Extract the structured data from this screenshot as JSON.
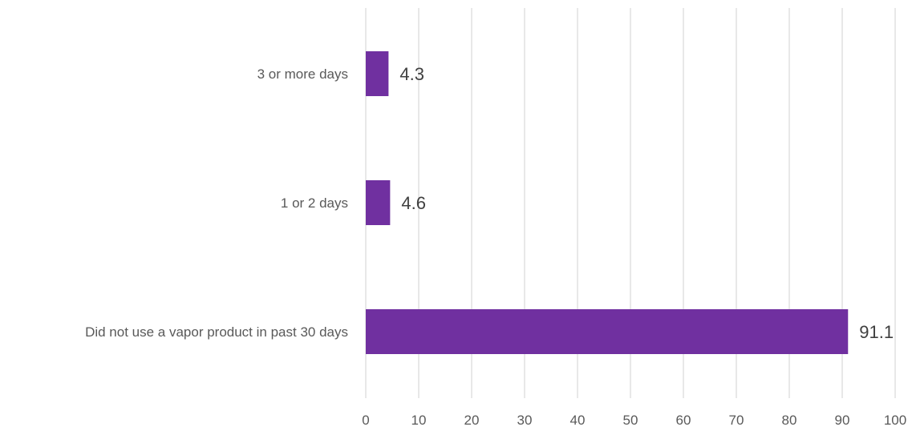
{
  "chart_data": {
    "type": "bar",
    "orientation": "horizontal",
    "categories": [
      "3 or more days",
      "1 or 2 days",
      "Did not use a vapor product in past 30 days"
    ],
    "values": [
      4.3,
      4.6,
      91.1
    ],
    "data_labels": [
      "4.3",
      "4.6",
      "91.1"
    ],
    "xlim": [
      0,
      100
    ],
    "xticks": [
      0,
      10,
      20,
      30,
      40,
      50,
      60,
      70,
      80,
      90,
      100
    ],
    "tick_labels": [
      "0",
      "10",
      "20",
      "30",
      "40",
      "50",
      "60",
      "70",
      "80",
      "90",
      "100"
    ],
    "grid": true,
    "legend": "none",
    "bar_color": "#7030a0",
    "grid_color": "#d9d9d9",
    "label_color": "#595959",
    "data_label_color": "#404040"
  }
}
